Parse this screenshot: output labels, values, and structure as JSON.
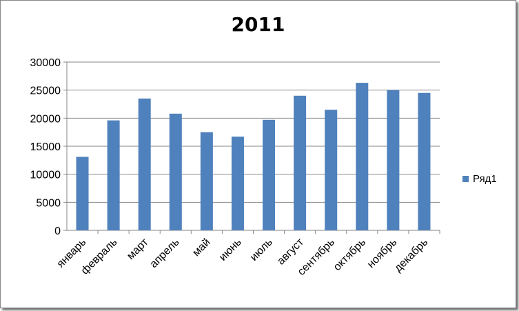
{
  "chart_data": {
    "type": "bar",
    "title": "2011",
    "categories": [
      "январь",
      "февраль",
      "март",
      "апрель",
      "май",
      "июнь",
      "июль",
      "август",
      "сентябрь",
      "октябрь",
      "ноябрь",
      "декабрь"
    ],
    "series": [
      {
        "name": "Ряд1",
        "color": "#4f81bd",
        "values": [
          13100,
          19600,
          23500,
          20800,
          17500,
          16700,
          19700,
          24000,
          21500,
          26300,
          25000,
          24500
        ]
      }
    ],
    "ylim": [
      0,
      30000
    ],
    "yticks": [
      0,
      5000,
      10000,
      15000,
      20000,
      25000,
      30000
    ],
    "grid": true,
    "legend_position": "right"
  }
}
